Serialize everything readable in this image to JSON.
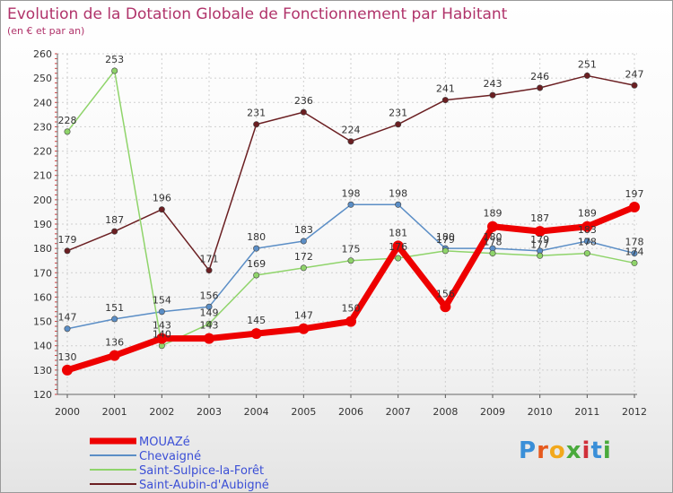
{
  "chart_data": {
    "type": "line",
    "title": "Evolution de la Dotation Globale de Fonctionnement par Habitant",
    "subtitle": "(en € et par an)",
    "xlabel": "",
    "ylabel": "",
    "ylim": [
      120,
      260
    ],
    "yticks": [
      120,
      130,
      140,
      150,
      160,
      170,
      180,
      190,
      200,
      210,
      220,
      230,
      240,
      250,
      260
    ],
    "grid": true,
    "legend": "bottom",
    "categories": [
      "2000",
      "2001",
      "2002",
      "2003",
      "2004",
      "2005",
      "2006",
      "2007",
      "2008",
      "2009",
      "2010",
      "2011",
      "2012"
    ],
    "series": [
      {
        "name": "Saint-Aubin-d'Aubigné",
        "color": "#6b1f22",
        "values": [
          179,
          187,
          196,
          171,
          231,
          236,
          224,
          231,
          241,
          243,
          246,
          251,
          247
        ]
      },
      {
        "name": "Chevaigné",
        "color": "#5b8ec6",
        "values": [
          147,
          151,
          154,
          156,
          180,
          183,
          198,
          198,
          180,
          180,
          179,
          183,
          178
        ]
      },
      {
        "name": "Saint-Sulpice-la-Forêt",
        "color": "#8fd46a",
        "values": [
          228,
          253,
          140,
          149,
          169,
          172,
          175,
          176,
          179,
          178,
          177,
          178,
          174
        ]
      },
      {
        "name": "MOUAZé",
        "color": "#ee0000",
        "values": [
          130,
          136,
          143,
          143,
          145,
          147,
          150,
          181,
          156,
          189,
          187,
          189,
          197
        ]
      }
    ]
  },
  "logo": {
    "text": "Proxiti"
  }
}
